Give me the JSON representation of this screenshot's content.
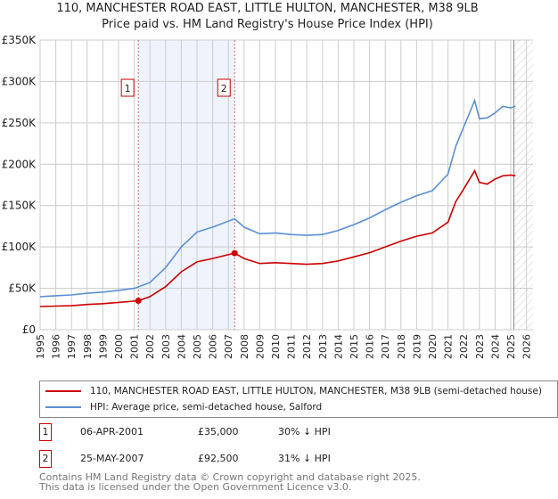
{
  "title": "110, MANCHESTER ROAD EAST, LITTLE HULTON, MANCHESTER, M38 9LB",
  "subtitle": "Price paid vs. HM Land Registry's House Price Index (HPI)",
  "colors": {
    "property": "#cc0000",
    "hpi": "#5b8fd6",
    "shade": "#eef3fc",
    "marker": "#cc0000"
  },
  "chart_data": {
    "type": "line",
    "title": "110, MANCHESTER ROAD EAST, LITTLE HULTON, MANCHESTER, M38 9LB",
    "subtitle": "Price paid vs. HM Land Registry's House Price Index (HPI)",
    "xlim": [
      1995,
      2026
    ],
    "ylim": [
      0,
      350000
    ],
    "x_ticks": [
      "1995",
      "1996",
      "1997",
      "1998",
      "1999",
      "2000",
      "2001",
      "2002",
      "2003",
      "2004",
      "2005",
      "2006",
      "2007",
      "2008",
      "2009",
      "2010",
      "2011",
      "2012",
      "2013",
      "2014",
      "2015",
      "2016",
      "2017",
      "2018",
      "2019",
      "2020",
      "2021",
      "2022",
      "2023",
      "2024",
      "2025",
      "2026"
    ],
    "y_ticks": [
      {
        "v": 0,
        "label": "£0"
      },
      {
        "v": 50000,
        "label": "£50K"
      },
      {
        "v": 100000,
        "label": "£100K"
      },
      {
        "v": 150000,
        "label": "£150K"
      },
      {
        "v": 200000,
        "label": "£200K"
      },
      {
        "v": 250000,
        "label": "£250K"
      },
      {
        "v": 300000,
        "label": "£300K"
      },
      {
        "v": 350000,
        "label": "£350K"
      }
    ],
    "grid": true,
    "forecast_hatch_from": 2025.2,
    "series": [
      {
        "name": "110, MANCHESTER ROAD EAST, LITTLE HULTON, MANCHESTER, M38 9LB (semi-detached house)",
        "x": [
          1995,
          1996,
          1997,
          1998,
          1999,
          2000,
          2001.26,
          2002,
          2003,
          2004,
          2005,
          2006,
          2007.4,
          2008,
          2009,
          2010,
          2011,
          2012,
          2013,
          2014,
          2015,
          2016,
          2017,
          2018,
          2019,
          2020,
          2021,
          2021.5,
          2022,
          2022.7,
          2023,
          2023.5,
          2024,
          2024.5,
          2025,
          2025.3
        ],
        "y": [
          28000,
          28500,
          29000,
          30500,
          31500,
          33000,
          35000,
          40000,
          52000,
          70000,
          82000,
          86000,
          92500,
          86000,
          80000,
          81000,
          80000,
          79000,
          80000,
          83000,
          88000,
          93000,
          100000,
          107000,
          113000,
          117000,
          130000,
          155000,
          170000,
          192000,
          178000,
          176000,
          182000,
          186000,
          187000,
          186000
        ]
      },
      {
        "name": "HPI: Average price, semi-detached house, Salford",
        "x": [
          1995,
          1996,
          1997,
          1998,
          1999,
          2000,
          2001,
          2002,
          2003,
          2004,
          2005,
          2006,
          2007.4,
          2008,
          2009,
          2010,
          2011,
          2012,
          2013,
          2014,
          2015,
          2016,
          2017,
          2018,
          2019,
          2020,
          2021,
          2021.5,
          2022,
          2022.7,
          2023,
          2023.5,
          2024,
          2024.5,
          2025,
          2025.3
        ],
        "y": [
          40000,
          41000,
          42000,
          44000,
          45500,
          47500,
          50000,
          57000,
          75000,
          100000,
          118000,
          124000,
          134000,
          124000,
          116000,
          117000,
          115000,
          114000,
          115000,
          120000,
          127000,
          135000,
          145000,
          154000,
          162000,
          168000,
          188000,
          222000,
          245000,
          277000,
          255000,
          256000,
          262000,
          270000,
          268000,
          270000
        ]
      }
    ],
    "annotations": [
      {
        "label": "1",
        "x": 2001.26,
        "y": 35000
      },
      {
        "label": "2",
        "x": 2007.4,
        "y": 92500
      }
    ],
    "legend_placement": "below"
  },
  "legend": {
    "property": "110, MANCHESTER ROAD EAST, LITTLE HULTON, MANCHESTER, M38 9LB (semi-detached house)",
    "hpi": "HPI: Average price, semi-detached house, Salford"
  },
  "sales": [
    {
      "num": "1",
      "date": "06-APR-2001",
      "price": "£35,000",
      "delta": "30% ↓ HPI"
    },
    {
      "num": "2",
      "date": "25-MAY-2007",
      "price": "£92,500",
      "delta": "31% ↓ HPI"
    }
  ],
  "footer": {
    "line1": "Contains HM Land Registry data © Crown copyright and database right 2025.",
    "line2": "This data is licensed under the Open Government Licence v3.0."
  }
}
